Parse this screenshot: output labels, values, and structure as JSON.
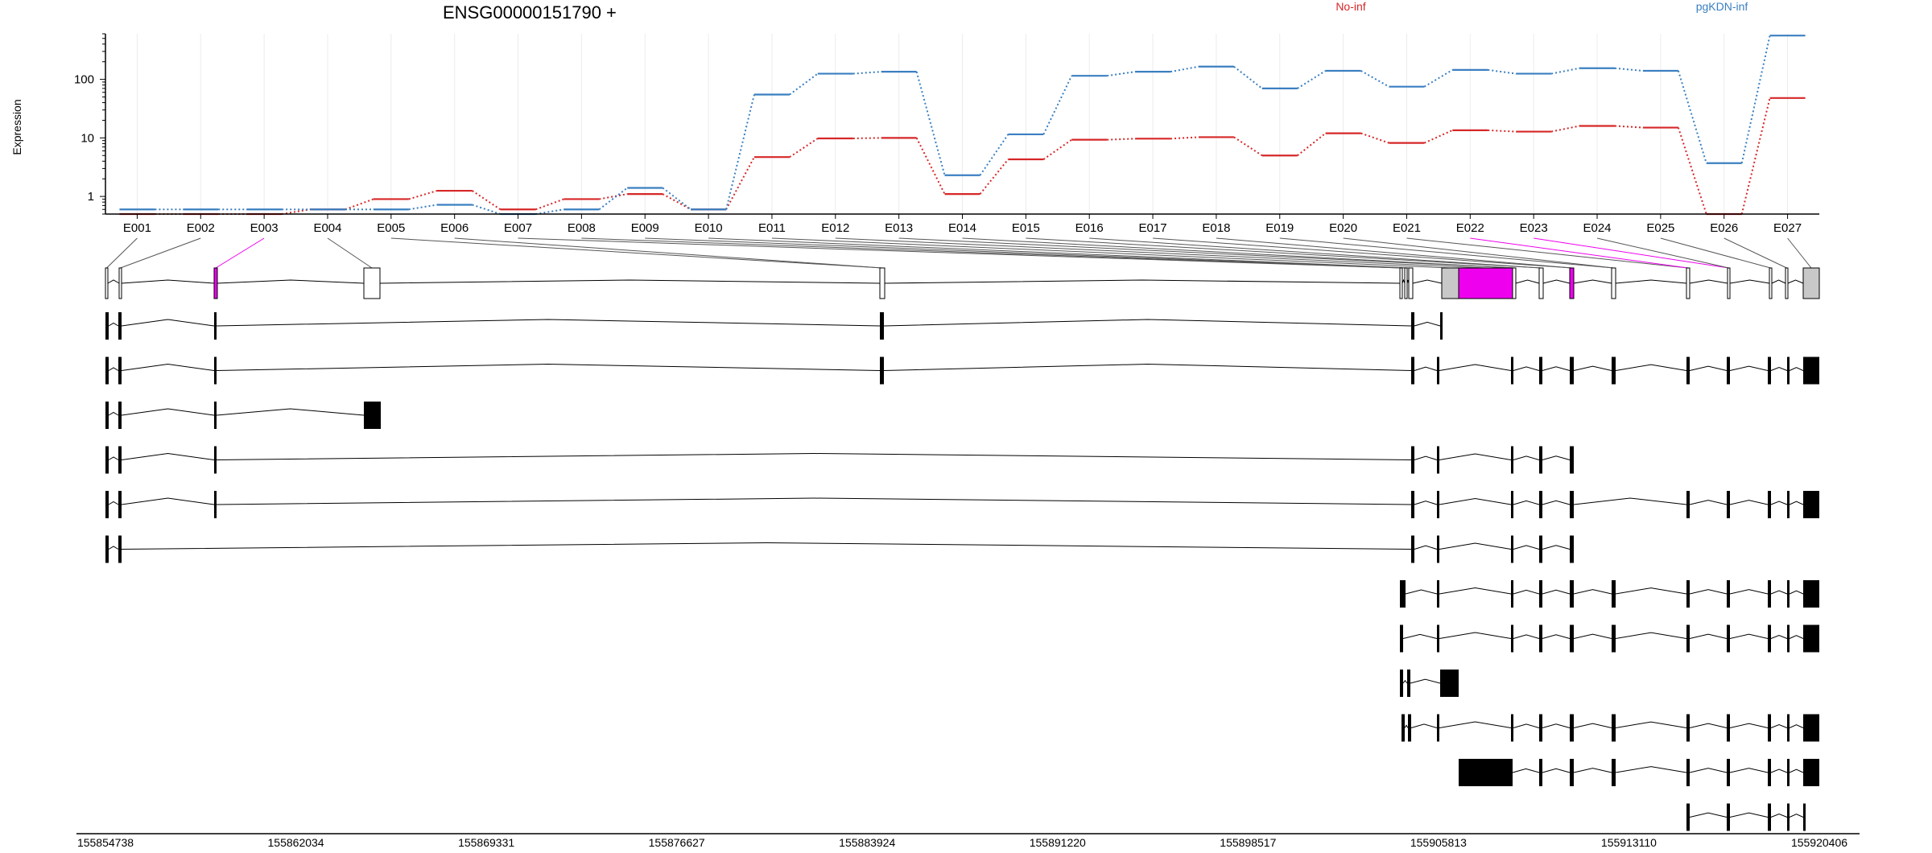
{
  "chart_data": {
    "type": "line",
    "title": "ENSG00000151790 +",
    "ylabel": "Expression",
    "xlabel": "",
    "y_scale": "log",
    "ylim": [
      0.5,
      600
    ],
    "y_ticks": [
      1,
      10,
      100
    ],
    "y_tick_labels": [
      "1",
      "10",
      "100"
    ],
    "grid": true,
    "legend_placement": "top",
    "categories": [
      "E001",
      "E002",
      "E003",
      "E004",
      "E005",
      "E006",
      "E007",
      "E008",
      "E009",
      "E010",
      "E011",
      "E012",
      "E013",
      "E014",
      "E015",
      "E016",
      "E017",
      "E018",
      "E019",
      "E020",
      "E021",
      "E022",
      "E023",
      "E024",
      "E025",
      "E026",
      "E027"
    ],
    "series": [
      {
        "name": "No-inf",
        "color": "#d62728",
        "values": [
          0.5,
          0.5,
          0.5,
          0.6,
          0.9,
          1.25,
          0.6,
          0.9,
          1.1,
          0.6,
          4.7,
          9.8,
          10,
          1.1,
          4.3,
          9.3,
          9.7,
          10.3,
          5,
          12,
          8.2,
          13.5,
          12.8,
          16,
          15,
          0.5,
          48
        ]
      },
      {
        "name": "pgKDN-inf",
        "color": "#3a7fc1",
        "values": [
          0.6,
          0.6,
          0.6,
          0.6,
          0.6,
          0.72,
          0.5,
          0.6,
          1.4,
          0.6,
          55,
          125,
          135,
          2.3,
          11.5,
          115,
          135,
          165,
          70,
          140,
          75,
          145,
          125,
          155,
          140,
          3.7,
          560
        ]
      }
    ],
    "track_colors": {
      "exon": "#ffffff",
      "shared_exon": "#c8c8c8",
      "highlight": "#ee00ee",
      "transcript": "#000000"
    },
    "gene_model": {
      "exon_highlight": [
        false,
        false,
        true,
        false,
        false,
        false,
        false,
        false,
        false,
        false,
        false,
        false,
        false,
        false,
        false,
        false,
        false,
        false,
        false,
        false,
        false,
        true,
        true,
        false,
        false,
        false,
        false
      ],
      "transcripts": [
        {
          "exons": [
            1,
            2,
            3,
            8,
            21,
            22
          ]
        },
        {
          "exons": [
            1,
            2,
            3,
            8,
            21,
            22,
            23,
            24,
            25,
            26,
            27,
            28,
            29,
            30,
            31
          ]
        },
        {
          "exons": [
            1,
            2,
            3,
            4
          ]
        },
        {
          "exons": [
            1,
            2,
            3,
            21,
            22,
            23,
            24,
            25
          ]
        },
        {
          "exons": [
            1,
            2,
            3,
            21,
            22,
            23,
            24,
            25,
            27,
            28,
            29,
            30,
            31
          ]
        },
        {
          "exons": [
            1,
            2,
            21,
            22,
            23,
            24,
            25
          ]
        },
        {
          "exons": [
            20,
            22,
            23,
            24,
            25,
            26,
            27,
            28,
            29,
            30,
            31
          ]
        },
        {
          "exons": [
            20,
            22,
            23,
            24,
            25,
            26,
            27,
            28,
            29,
            30,
            31
          ]
        },
        {
          "exons": [
            18,
            20,
            21
          ]
        },
        {
          "exons": [
            19,
            20,
            22,
            23,
            24,
            25,
            27,
            28,
            29,
            30,
            31
          ]
        },
        {
          "exons": [
            21,
            23,
            24,
            25,
            26,
            27,
            28,
            29,
            30,
            31
          ]
        },
        {
          "exons": [
            28,
            29,
            30,
            31,
            32
          ]
        }
      ]
    },
    "coordinate_ticks": [
      "155854738",
      "155862034",
      "155869331",
      "155876627",
      "155883924",
      "155891220",
      "155898517",
      "155905813",
      "155913110",
      "155920406"
    ]
  }
}
